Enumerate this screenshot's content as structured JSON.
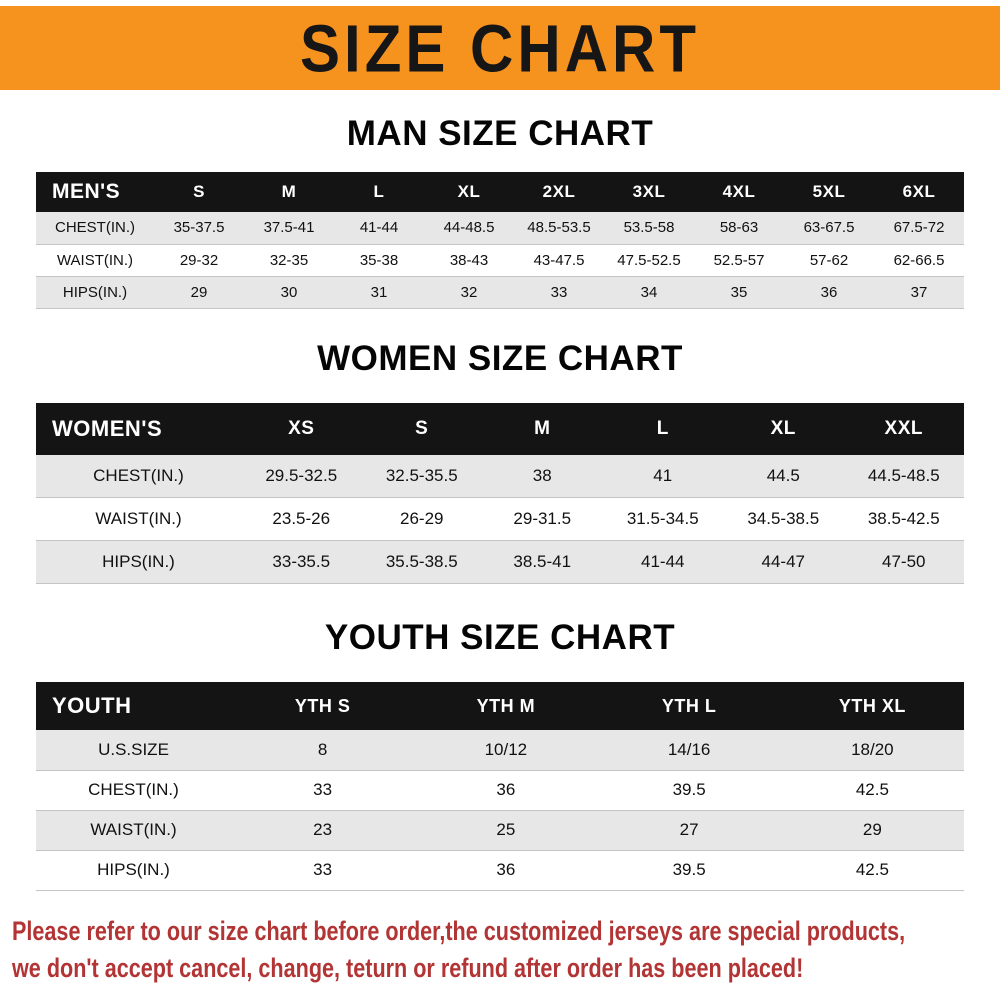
{
  "banner": {
    "title": "SIZE CHART"
  },
  "colors": {
    "banner_bg": "#F6921E",
    "banner_text": "#161616",
    "header_row_bg": "#141414",
    "header_row_text": "#ffffff",
    "row_alt_bg": "#e7e7e7",
    "footer_text": "#b23434"
  },
  "sections": [
    {
      "heading": "MAN SIZE CHART",
      "table": {
        "header": [
          "MEN'S",
          "S",
          "M",
          "L",
          "XL",
          "2XL",
          "3XL",
          "4XL",
          "5XL",
          "6XL"
        ],
        "rows": [
          [
            "CHEST(IN.)",
            "35-37.5",
            "37.5-41",
            "41-44",
            "44-48.5",
            "48.5-53.5",
            "53.5-58",
            "58-63",
            "63-67.5",
            "67.5-72"
          ],
          [
            "WAIST(IN.)",
            "29-32",
            "32-35",
            "35-38",
            "38-43",
            "43-47.5",
            "47.5-52.5",
            "52.5-57",
            "57-62",
            "62-66.5"
          ],
          [
            "HIPS(IN.)",
            "29",
            "30",
            "31",
            "32",
            "33",
            "34",
            "35",
            "36",
            "37"
          ]
        ]
      }
    },
    {
      "heading": "WOMEN SIZE CHART",
      "table": {
        "header": [
          "WOMEN'S",
          "XS",
          "S",
          "M",
          "L",
          "XL",
          "XXL"
        ],
        "rows": [
          [
            "CHEST(IN.)",
            "29.5-32.5",
            "32.5-35.5",
            "38",
            "41",
            "44.5",
            "44.5-48.5"
          ],
          [
            "WAIST(IN.)",
            "23.5-26",
            "26-29",
            "29-31.5",
            "31.5-34.5",
            "34.5-38.5",
            "38.5-42.5"
          ],
          [
            "HIPS(IN.)",
            "33-35.5",
            "35.5-38.5",
            "38.5-41",
            "41-44",
            "44-47",
            "47-50"
          ]
        ]
      }
    },
    {
      "heading": "YOUTH SIZE CHART",
      "table": {
        "header": [
          "YOUTH",
          "YTH S",
          "YTH M",
          "YTH L",
          "YTH XL"
        ],
        "rows": [
          [
            "U.S.SIZE",
            "8",
            "10/12",
            "14/16",
            "18/20"
          ],
          [
            "CHEST(IN.)",
            "33",
            "36",
            "39.5",
            "42.5"
          ],
          [
            "WAIST(IN.)",
            "23",
            "25",
            "27",
            "29"
          ],
          [
            "HIPS(IN.)",
            "33",
            "36",
            "39.5",
            "42.5"
          ]
        ]
      }
    }
  ],
  "footer": {
    "line1": "Please refer to our size chart before order,the customized jerseys are special products,",
    "line2": "we don't accept cancel, change, teturn or refund after order has been placed!"
  }
}
